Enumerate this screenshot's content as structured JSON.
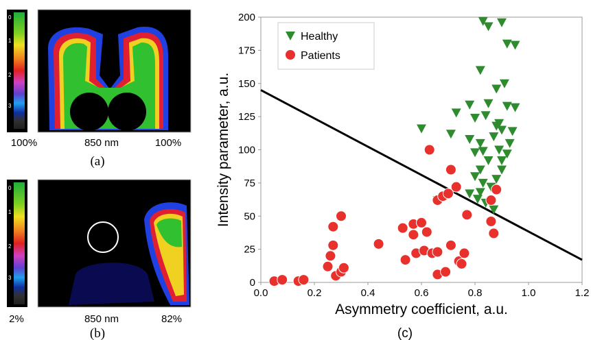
{
  "panels": [
    {
      "colorbar_labels": [
        "0",
        "1",
        "2",
        "3"
      ],
      "left": "100%",
      "center": "850 nm",
      "right": "100%",
      "caption": "(a)"
    },
    {
      "colorbar_labels": [
        "0",
        "1",
        "2",
        "3"
      ],
      "left": "2%",
      "center": "850 nm",
      "right": "82%",
      "caption": "(b)"
    }
  ],
  "caption": "(c)",
  "chart_data": {
    "type": "scatter",
    "x_label": "Asymmetry coefficient, a.u.",
    "y_label": "Intensity parameter, a.u.",
    "xlim": [
      0,
      1.2
    ],
    "ylim": [
      0,
      200
    ],
    "xticks": [
      {
        "value": 0,
        "label": "0.0"
      },
      0.2,
      0.4,
      0.6,
      0.8,
      {
        "value": 1,
        "label": "1.0"
      },
      1.2
    ],
    "yticks": [
      0,
      25,
      50,
      75,
      100,
      125,
      150,
      175,
      200
    ],
    "legend": "upper left",
    "line": {
      "x": [
        0,
        1.2
      ],
      "y": [
        145,
        17
      ],
      "color": "#000000"
    },
    "series": [
      {
        "name": "Healthy",
        "color": "#2e8b2e",
        "marker": "triangle-down",
        "x": [
          0.6,
          0.83,
          0.85,
          0.9,
          0.92,
          0.95,
          0.82,
          0.88,
          0.91,
          0.78,
          0.85,
          0.92,
          0.95,
          0.73,
          0.8,
          0.84,
          0.89,
          0.94,
          0.71,
          0.88,
          0.9,
          0.78,
          0.82,
          0.87,
          0.93,
          0.8,
          0.83,
          0.89,
          0.92,
          0.9,
          0.85,
          0.82,
          0.9,
          0.8,
          0.88,
          0.83,
          0.86,
          0.78,
          0.81,
          0.84,
          0.66,
          0.87,
          0.82
        ],
        "values": [
          116,
          197,
          193,
          196,
          180,
          179,
          160,
          146,
          150,
          134,
          135,
          133,
          132,
          128,
          124,
          126,
          120,
          114,
          112,
          118,
          115,
          108,
          105,
          110,
          105,
          98,
          99,
          100,
          97,
          92,
          92,
          85,
          85,
          80,
          78,
          75,
          72,
          67,
          63,
          60,
          62,
          55,
          68
        ]
      },
      {
        "name": "Patients",
        "color": "#e8312c",
        "marker": "circle",
        "x": [
          0.05,
          0.08,
          0.14,
          0.16,
          0.25,
          0.26,
          0.27,
          0.27,
          0.28,
          0.3,
          0.3,
          0.31,
          0.44,
          0.53,
          0.54,
          0.57,
          0.57,
          0.58,
          0.6,
          0.61,
          0.62,
          0.64,
          0.66,
          0.66,
          0.69,
          0.71,
          0.74,
          0.76,
          0.73,
          0.71,
          0.63,
          0.66,
          0.68,
          0.7,
          0.77,
          0.86,
          0.87,
          0.88,
          0.86,
          0.75
        ],
        "values": [
          1,
          2,
          1,
          2,
          12,
          20,
          28,
          42,
          5,
          50,
          8,
          11,
          29,
          41,
          17,
          36,
          44,
          22,
          45,
          24,
          38,
          22,
          23,
          6,
          8,
          28,
          16,
          22,
          72,
          85,
          100,
          62,
          65,
          67,
          51,
          46,
          37,
          70,
          62,
          14
        ]
      }
    ]
  }
}
